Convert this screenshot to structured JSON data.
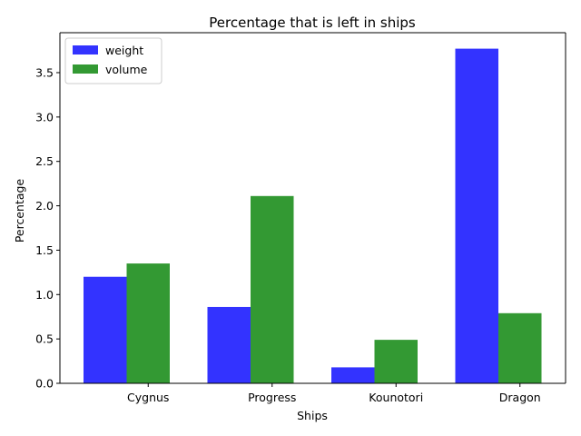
{
  "chart_data": {
    "type": "bar",
    "title": "Percentage that is left in ships",
    "xlabel": "Ships",
    "ylabel": "Percentage",
    "categories": [
      "Cygnus",
      "Progress",
      "Kounotori",
      "Dragon"
    ],
    "series": [
      {
        "name": "weight",
        "color": "#3333ff",
        "values": [
          1.2,
          0.86,
          0.18,
          3.77
        ]
      },
      {
        "name": "volume",
        "color": "#339933",
        "values": [
          1.35,
          2.11,
          0.49,
          0.79
        ]
      }
    ],
    "ylim": [
      0,
      3.95
    ],
    "yticks": [
      0.0,
      0.5,
      1.0,
      1.5,
      2.0,
      2.5,
      3.0,
      3.5
    ],
    "ytick_labels": [
      "0.0",
      "0.5",
      "1.0",
      "1.5",
      "2.0",
      "2.5",
      "3.0",
      "3.5"
    ],
    "grid": false,
    "legend_position": "top-left"
  }
}
